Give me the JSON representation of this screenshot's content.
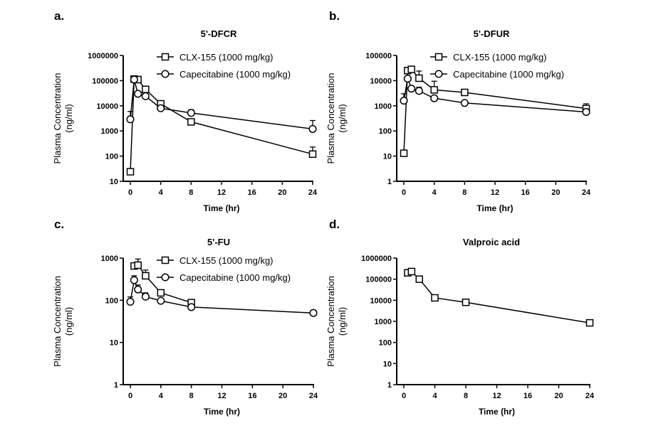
{
  "chart_data": [
    {
      "panel": "a.",
      "type": "line",
      "title": "5'-DFCR",
      "xlabel": "Time (hr)",
      "ylabel": [
        "Plasma Concentration",
        "(ng/ml)"
      ],
      "yscale": "log",
      "ylim": [
        10,
        1000000
      ],
      "yticks": [
        "10",
        "100",
        "1000",
        "10000",
        "100000",
        "1000000"
      ],
      "xlim": [
        0,
        24
      ],
      "xticks": [
        "0",
        "4",
        "8",
        "12",
        "16",
        "20",
        "24"
      ],
      "legend": "top-right",
      "series": [
        {
          "name": "CLX-155 (1000 mg/kg)",
          "marker": "square",
          "x": [
            0,
            0.5,
            1,
            2,
            4,
            8,
            24
          ],
          "y": [
            24,
            115000,
            110000,
            45000,
            12000,
            2300,
            120
          ],
          "yerr_upper": [
            0,
            0,
            0,
            55000,
            14000,
            3000,
            230
          ]
        },
        {
          "name": "Capecitabine (1000 mg/kg)",
          "marker": "circle",
          "x": [
            0,
            0.5,
            1,
            2,
            4,
            8,
            24
          ],
          "y": [
            2900,
            110000,
            30000,
            24000,
            8000,
            5200,
            1200
          ],
          "yerr_upper": [
            6000,
            0,
            0,
            0,
            0,
            7000,
            2600
          ]
        }
      ]
    },
    {
      "panel": "b.",
      "type": "line",
      "title": "5'-DFUR",
      "xlabel": "Time (hr)",
      "ylabel": [
        "Plasma Concentration",
        "(ng/ml)"
      ],
      "yscale": "log",
      "ylim": [
        1,
        100000
      ],
      "yticks": [
        "1",
        "10",
        "100",
        "1000",
        "10000",
        "100000"
      ],
      "xlim": [
        0,
        24
      ],
      "xticks": [
        "0",
        "4",
        "8",
        "12",
        "16",
        "20",
        "24"
      ],
      "legend": "top-right",
      "series": [
        {
          "name": "CLX-155 (1000 mg/kg)",
          "marker": "square",
          "x": [
            0,
            0.5,
            1,
            2,
            4,
            8,
            24
          ],
          "y": [
            13,
            25000,
            28000,
            12500,
            4300,
            3400,
            780
          ],
          "yerr_upper": [
            0,
            0,
            0,
            24000,
            9500,
            0,
            1200
          ]
        },
        {
          "name": "Capecitabine (1000 mg/kg)",
          "marker": "circle",
          "x": [
            0,
            0.5,
            1,
            2,
            4,
            8,
            24
          ],
          "y": [
            1600,
            12000,
            4800,
            3900,
            2000,
            1300,
            570
          ],
          "yerr_upper": [
            3000,
            0,
            0,
            5500,
            0,
            0,
            0
          ]
        }
      ]
    },
    {
      "panel": "c.",
      "type": "line",
      "title": "5'-FU",
      "xlabel": "Time (hr)",
      "ylabel": [
        "Plasma Concentration",
        "(ng/ml)"
      ],
      "yscale": "log",
      "ylim": [
        1,
        1000
      ],
      "yticks": [
        "1",
        "10",
        "100",
        "1000"
      ],
      "xlim": [
        0,
        24
      ],
      "xticks": [
        "0",
        "4",
        "8",
        "12",
        "16",
        "20",
        "24"
      ],
      "legend": "top-right",
      "series": [
        {
          "name": "CLX-155 (1000 mg/kg)",
          "marker": "square",
          "x": [
            0.5,
            1,
            2,
            4,
            8
          ],
          "y": [
            650,
            680,
            380,
            150,
            88
          ],
          "yerr_upper": [
            0,
            950,
            520,
            0,
            0
          ]
        },
        {
          "name": "Capecitabine (1000 mg/kg)",
          "marker": "circle",
          "x": [
            0,
            0.5,
            1,
            2,
            4,
            8,
            24
          ],
          "y": [
            92,
            300,
            180,
            122,
            97,
            69,
            50
          ],
          "yerr_upper": [
            120,
            380,
            230,
            150,
            0,
            0,
            0
          ]
        }
      ]
    },
    {
      "panel": "d.",
      "type": "line",
      "title": "Valproic acid",
      "xlabel": "Time (hr)",
      "ylabel": [
        "Plasma Concentration",
        "(ng/ml)"
      ],
      "yscale": "log",
      "ylim": [
        1,
        1000000
      ],
      "yticks": [
        "1",
        "10",
        "100",
        "1000",
        "10000",
        "100000",
        "1000000"
      ],
      "xlim": [
        0,
        24
      ],
      "xticks": [
        "0",
        "4",
        "8",
        "12",
        "16",
        "20",
        "24"
      ],
      "legend": "none",
      "series": [
        {
          "name": "Valproic acid",
          "marker": "square",
          "x": [
            0.5,
            1,
            2,
            4,
            8,
            24
          ],
          "y": [
            200000,
            230000,
            100000,
            13000,
            8000,
            850
          ],
          "yerr_upper": [
            0,
            260000,
            0,
            0,
            11000,
            0
          ]
        }
      ]
    }
  ]
}
